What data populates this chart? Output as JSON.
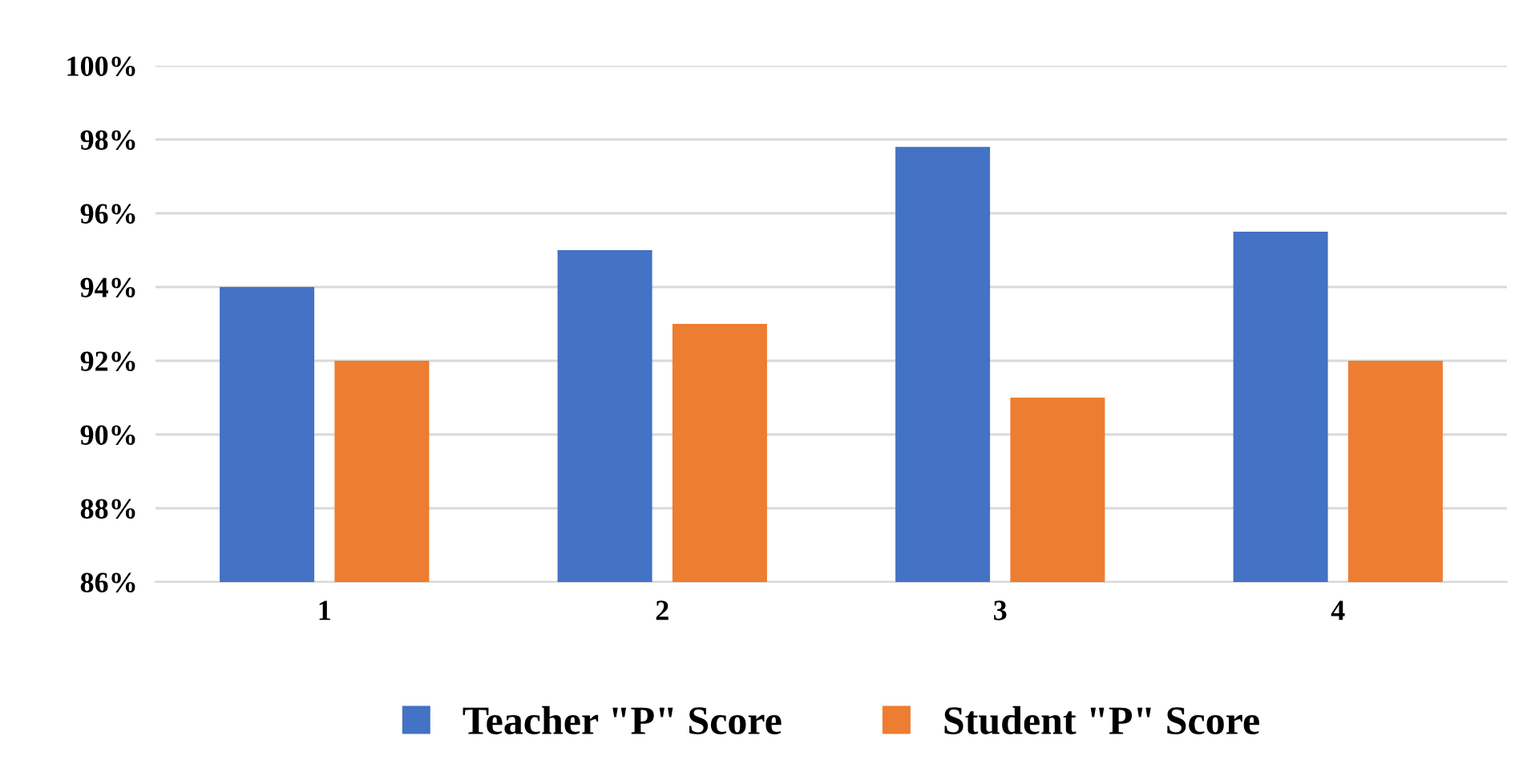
{
  "chart_data": {
    "type": "bar",
    "categories": [
      "1",
      "2",
      "3",
      "4"
    ],
    "series": [
      {
        "name": "Teacher \"P\" Score",
        "color": "#4472c4",
        "values": [
          94,
          95,
          97.8,
          95.5
        ]
      },
      {
        "name": "Student \"P\" Score",
        "color": "#ed7d31",
        "values": [
          92,
          93,
          91,
          92
        ]
      }
    ],
    "ylim": [
      86,
      100
    ],
    "yticks": [
      {
        "value": 86,
        "label": "86%"
      },
      {
        "value": 88,
        "label": "88%"
      },
      {
        "value": 90,
        "label": "90%"
      },
      {
        "value": 92,
        "label": "92%"
      },
      {
        "value": 94,
        "label": "94%"
      },
      {
        "value": 96,
        "label": "96%"
      },
      {
        "value": 98,
        "label": "98%"
      },
      {
        "value": 100,
        "label": "100%"
      }
    ],
    "grid": "y",
    "legend": "bottom"
  }
}
